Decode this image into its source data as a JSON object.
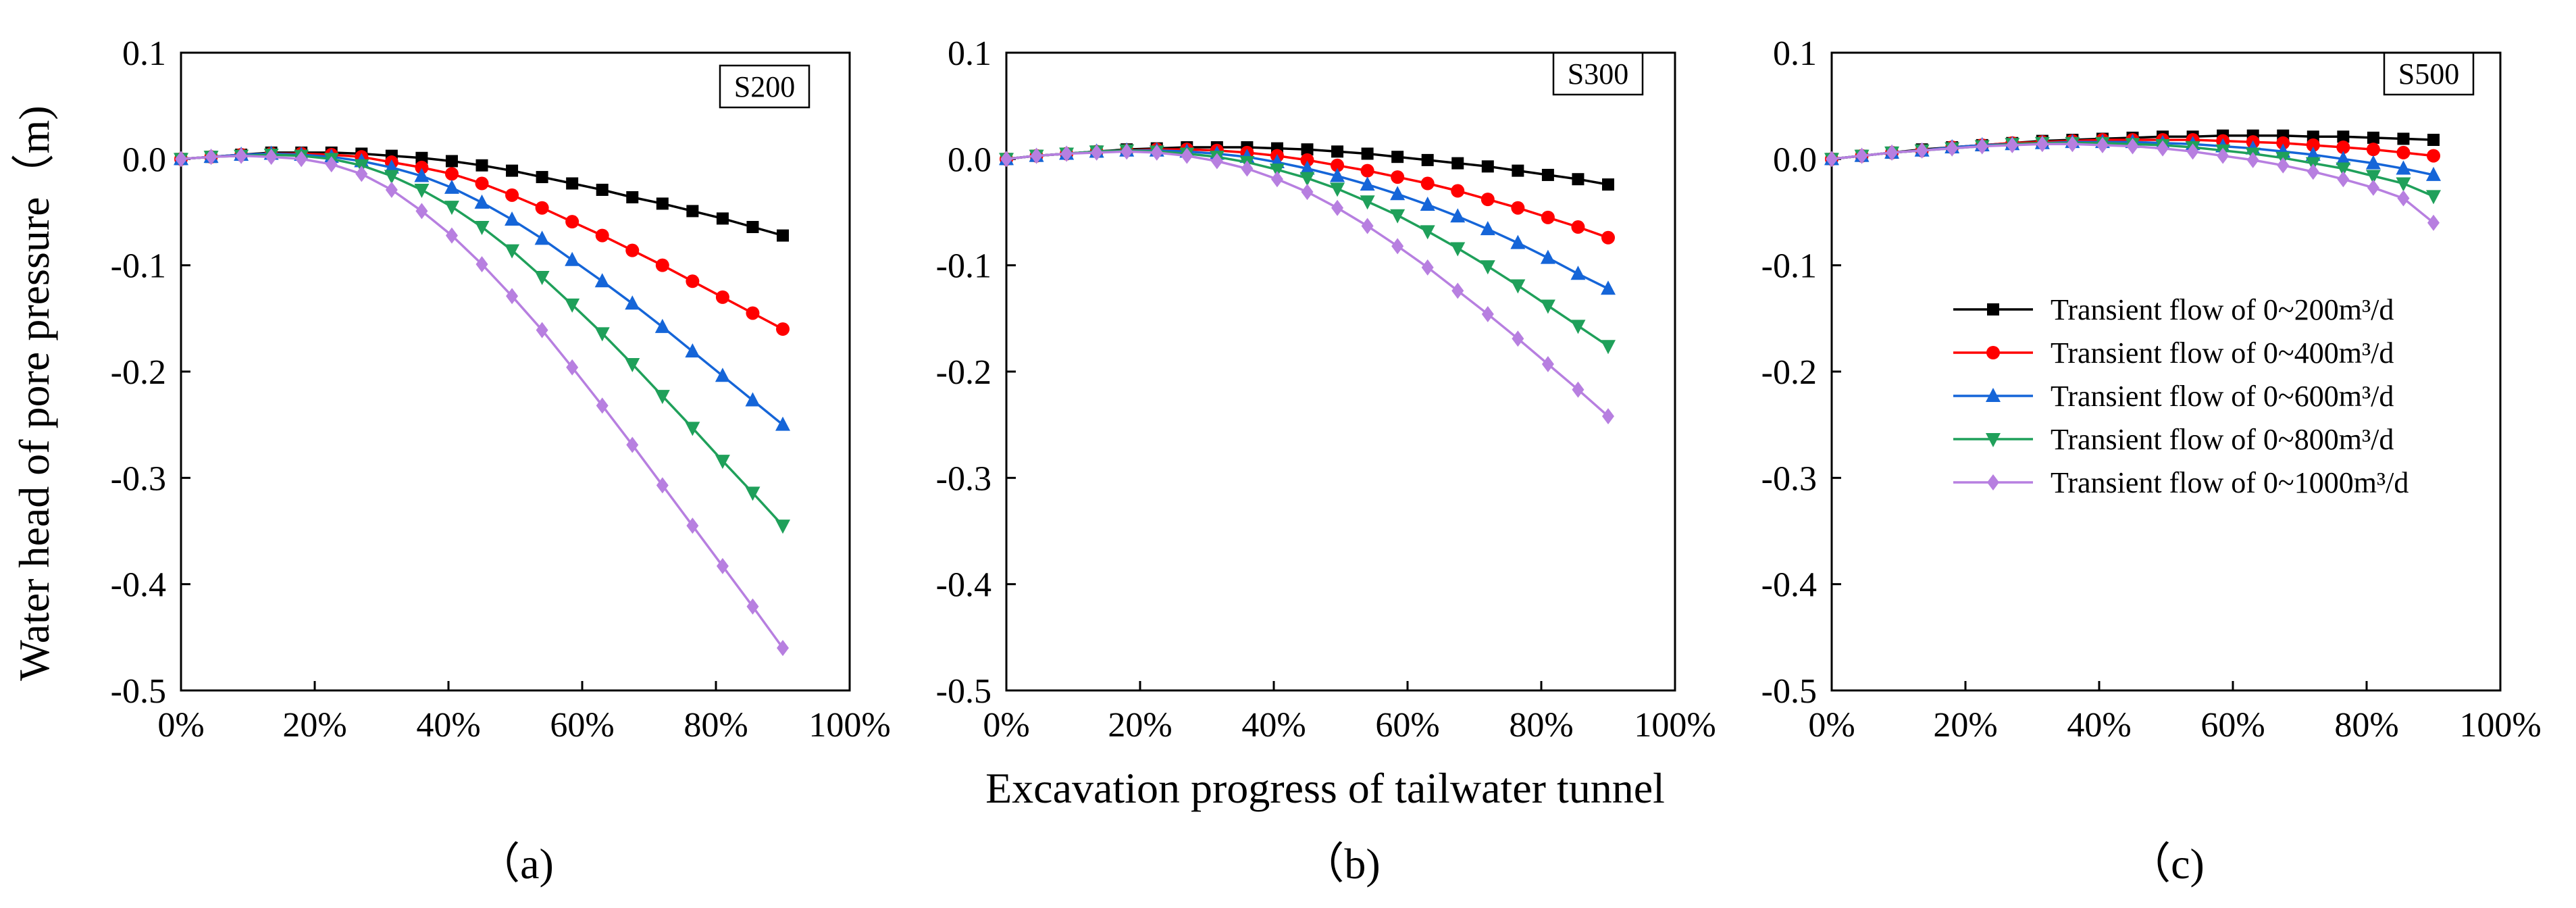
{
  "figure": {
    "ylabel": "Water head of pore pressure（m)",
    "xlabel": "Excavation progress of tailwater tunnel"
  },
  "chart_data": [
    {
      "type": "line",
      "panel_tag": "S200",
      "caption": "（a)",
      "x_ticks": [
        "0%",
        "20%",
        "40%",
        "60%",
        "80%",
        "100%"
      ],
      "y_ticks": [
        "0.1",
        "0.0",
        "-0.1",
        "-0.2",
        "-0.3",
        "-0.4",
        "-0.5"
      ],
      "xlim": [
        0,
        100
      ],
      "ylim": [
        -0.5,
        0.1
      ],
      "x": [
        0,
        4.5,
        9,
        13.5,
        18,
        22.5,
        27,
        31.5,
        36,
        40.5,
        45,
        49.5,
        54,
        58.5,
        63,
        67.5,
        72,
        76.5,
        81,
        85.5,
        90
      ],
      "series": [
        {
          "name": "Transient flow of 0~200m³/d",
          "color": "#000000",
          "marker": "square",
          "values": [
            0,
            0.002,
            0.004,
            0.006,
            0.006,
            0.006,
            0.005,
            0.003,
            0.001,
            -0.002,
            -0.006,
            -0.011,
            -0.017,
            -0.023,
            -0.029,
            -0.036,
            -0.042,
            -0.049,
            -0.056,
            -0.064,
            -0.072
          ]
        },
        {
          "name": "Transient flow of 0~400m³/d",
          "color": "#ff0000",
          "marker": "circle",
          "values": [
            0,
            0.002,
            0.004,
            0.005,
            0.005,
            0.004,
            0.002,
            -0.003,
            -0.008,
            -0.014,
            -0.023,
            -0.034,
            -0.046,
            -0.059,
            -0.072,
            -0.086,
            -0.1,
            -0.115,
            -0.13,
            -0.145,
            -0.16
          ]
        },
        {
          "name": "Transient flow of 0~600m³/d",
          "color": "#1565d8",
          "marker": "triangle-up",
          "values": [
            0,
            0.002,
            0.004,
            0.005,
            0.004,
            0.002,
            -0.002,
            -0.008,
            -0.016,
            -0.027,
            -0.041,
            -0.057,
            -0.075,
            -0.095,
            -0.115,
            -0.136,
            -0.158,
            -0.181,
            -0.204,
            -0.227,
            -0.25
          ]
        },
        {
          "name": "Transient flow of 0~800m³/d",
          "color": "#1fa05a",
          "marker": "triangle-down",
          "values": [
            0,
            0.002,
            0.003,
            0.004,
            0.003,
            0.0,
            -0.006,
            -0.016,
            -0.029,
            -0.045,
            -0.064,
            -0.086,
            -0.111,
            -0.137,
            -0.164,
            -0.193,
            -0.223,
            -0.253,
            -0.284,
            -0.314,
            -0.345
          ]
        },
        {
          "name": "Transient flow of 0~1000m³/d",
          "color": "#b77fe0",
          "marker": "diamond",
          "values": [
            0,
            0.002,
            0.003,
            0.002,
            0.0,
            -0.005,
            -0.014,
            -0.029,
            -0.049,
            -0.072,
            -0.099,
            -0.129,
            -0.161,
            -0.196,
            -0.232,
            -0.269,
            -0.307,
            -0.345,
            -0.383,
            -0.421,
            -0.46
          ]
        }
      ]
    },
    {
      "type": "line",
      "panel_tag": "S300",
      "caption": "（b)",
      "x_ticks": [
        "0%",
        "20%",
        "40%",
        "60%",
        "80%",
        "100%"
      ],
      "y_ticks": [
        "0.1",
        "0.0",
        "-0.1",
        "-0.2",
        "-0.3",
        "-0.4",
        "-0.5"
      ],
      "xlim": [
        0,
        100
      ],
      "ylim": [
        -0.5,
        0.1
      ],
      "x": [
        0,
        4.5,
        9,
        13.5,
        18,
        22.5,
        27,
        31.5,
        36,
        40.5,
        45,
        49.5,
        54,
        58.5,
        63,
        67.5,
        72,
        76.5,
        81,
        85.5,
        90
      ],
      "series": [
        {
          "name": "Transient flow of 0~200m³/d",
          "color": "#000000",
          "marker": "square",
          "values": [
            0,
            0.003,
            0.005,
            0.007,
            0.009,
            0.01,
            0.011,
            0.011,
            0.011,
            0.01,
            0.009,
            0.007,
            0.005,
            0.002,
            -0.001,
            -0.004,
            -0.007,
            -0.011,
            -0.015,
            -0.019,
            -0.024
          ]
        },
        {
          "name": "Transient flow of 0~400m³/d",
          "color": "#ff0000",
          "marker": "circle",
          "values": [
            0,
            0.003,
            0.005,
            0.007,
            0.008,
            0.009,
            0.009,
            0.008,
            0.006,
            0.003,
            -0.001,
            -0.006,
            -0.011,
            -0.017,
            -0.023,
            -0.03,
            -0.038,
            -0.046,
            -0.055,
            -0.064,
            -0.074
          ]
        },
        {
          "name": "Transient flow of 0~600m³/d",
          "color": "#1565d8",
          "marker": "triangle-up",
          "values": [
            0,
            0.003,
            0.005,
            0.007,
            0.008,
            0.008,
            0.007,
            0.005,
            0.002,
            -0.003,
            -0.009,
            -0.016,
            -0.024,
            -0.033,
            -0.043,
            -0.054,
            -0.066,
            -0.079,
            -0.093,
            -0.108,
            -0.122
          ]
        },
        {
          "name": "Transient flow of 0~800m³/d",
          "color": "#1fa05a",
          "marker": "triangle-down",
          "values": [
            0,
            0.003,
            0.005,
            0.007,
            0.008,
            0.007,
            0.005,
            0.002,
            -0.003,
            -0.01,
            -0.018,
            -0.028,
            -0.04,
            -0.053,
            -0.068,
            -0.084,
            -0.101,
            -0.119,
            -0.138,
            -0.157,
            -0.176
          ]
        },
        {
          "name": "Transient flow of 0~1000m³/d",
          "color": "#b77fe0",
          "marker": "diamond",
          "values": [
            0,
            0.003,
            0.005,
            0.006,
            0.007,
            0.006,
            0.003,
            -0.002,
            -0.009,
            -0.019,
            -0.031,
            -0.046,
            -0.063,
            -0.082,
            -0.102,
            -0.124,
            -0.146,
            -0.169,
            -0.193,
            -0.217,
            -0.242
          ]
        }
      ]
    },
    {
      "type": "line",
      "panel_tag": "S500",
      "caption": "（c)",
      "x_ticks": [
        "0%",
        "20%",
        "40%",
        "60%",
        "80%",
        "100%"
      ],
      "y_ticks": [
        "0.1",
        "0.0",
        "-0.1",
        "-0.2",
        "-0.3",
        "-0.4",
        "-0.5"
      ],
      "xlim": [
        0,
        100
      ],
      "ylim": [
        -0.5,
        0.1
      ],
      "x": [
        0,
        4.5,
        9,
        13.5,
        18,
        22.5,
        27,
        31.5,
        36,
        40.5,
        45,
        49.5,
        54,
        58.5,
        63,
        67.5,
        72,
        76.5,
        81,
        85.5,
        90
      ],
      "series": [
        {
          "name": "Transient flow of 0~200m³/d",
          "color": "#000000",
          "marker": "square",
          "values": [
            0,
            0.003,
            0.006,
            0.009,
            0.011,
            0.013,
            0.015,
            0.017,
            0.018,
            0.019,
            0.02,
            0.021,
            0.021,
            0.022,
            0.022,
            0.022,
            0.021,
            0.021,
            0.02,
            0.019,
            0.018
          ]
        },
        {
          "name": "Transient flow of 0~400m³/d",
          "color": "#ff0000",
          "marker": "circle",
          "values": [
            0,
            0.003,
            0.006,
            0.008,
            0.011,
            0.013,
            0.015,
            0.016,
            0.017,
            0.018,
            0.018,
            0.018,
            0.018,
            0.017,
            0.016,
            0.015,
            0.013,
            0.011,
            0.009,
            0.006,
            0.003
          ]
        },
        {
          "name": "Transient flow of 0~600m³/d",
          "color": "#1565d8",
          "marker": "triangle-up",
          "values": [
            0,
            0.003,
            0.006,
            0.008,
            0.011,
            0.013,
            0.014,
            0.015,
            0.016,
            0.016,
            0.016,
            0.015,
            0.014,
            0.012,
            0.01,
            0.007,
            0.004,
            0.0,
            -0.004,
            -0.009,
            -0.015
          ]
        },
        {
          "name": "Transient flow of 0~800m³/d",
          "color": "#1fa05a",
          "marker": "triangle-down",
          "values": [
            0,
            0.003,
            0.006,
            0.008,
            0.01,
            0.012,
            0.014,
            0.015,
            0.015,
            0.015,
            0.014,
            0.013,
            0.011,
            0.008,
            0.005,
            0.001,
            -0.004,
            -0.009,
            -0.016,
            -0.023,
            -0.035
          ]
        },
        {
          "name": "Transient flow of 0~1000m³/d",
          "color": "#b77fe0",
          "marker": "diamond",
          "values": [
            0,
            0.003,
            0.006,
            0.008,
            0.01,
            0.012,
            0.013,
            0.014,
            0.014,
            0.013,
            0.012,
            0.01,
            0.007,
            0.003,
            -0.001,
            -0.006,
            -0.012,
            -0.019,
            -0.027,
            -0.037,
            -0.06
          ]
        }
      ]
    }
  ]
}
